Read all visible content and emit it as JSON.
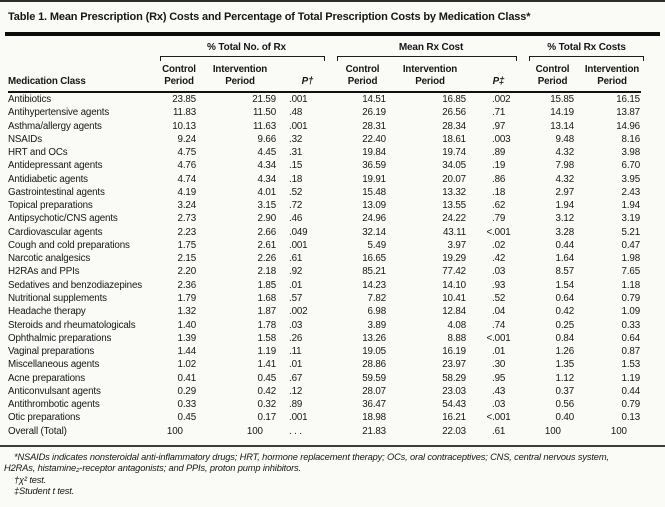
{
  "title": "Table 1. Mean Prescription (Rx) Costs and Percentage of Total Prescription Costs by Medication Class*",
  "table": {
    "row_header": "Medication Class",
    "groups": [
      {
        "label": "% Total No. of Rx",
        "columns": [
          "Control\nPeriod",
          "Intervention\nPeriod",
          "P†"
        ]
      },
      {
        "label": "Mean Rx Cost",
        "columns": [
          "Control\nPeriod",
          "Intervention\nPeriod",
          "P‡"
        ]
      },
      {
        "label": "% Total Rx Costs",
        "columns": [
          "Control\nPeriod",
          "Intervention\nPeriod"
        ]
      }
    ],
    "rows": [
      {
        "label": "Antibiotics",
        "values": [
          "23.85",
          "21.59",
          ".001",
          "14.51",
          "16.85",
          ".002",
          "15.85",
          "16.15"
        ]
      },
      {
        "label": "Antihypertensive agents",
        "values": [
          "11.83",
          "11.50",
          ".48",
          "26.19",
          "26.56",
          ".71",
          "14.19",
          "13.87"
        ]
      },
      {
        "label": "Asthma/allergy agents",
        "values": [
          "10.13",
          "11.63",
          ".001",
          "28.31",
          "28.34",
          ".97",
          "13.14",
          "14.96"
        ]
      },
      {
        "label": "NSAIDs",
        "values": [
          "9.24",
          "9.66",
          ".32",
          "22.40",
          "18.61",
          ".003",
          "9.48",
          "8.16"
        ]
      },
      {
        "label": "HRT and OCs",
        "values": [
          "4.75",
          "4.45",
          ".31",
          "19.84",
          "19.74",
          ".89",
          "4.32",
          "3.98"
        ]
      },
      {
        "label": "Antidepressant agents",
        "values": [
          "4.76",
          "4.34",
          ".15",
          "36.59",
          "34.05",
          ".19",
          "7.98",
          "6.70"
        ]
      },
      {
        "label": "Antidiabetic agents",
        "values": [
          "4.74",
          "4.34",
          ".18",
          "19.91",
          "20.07",
          ".86",
          "4.32",
          "3.95"
        ]
      },
      {
        "label": "Gastrointestinal agents",
        "values": [
          "4.19",
          "4.01",
          ".52",
          "15.48",
          "13.32",
          ".18",
          "2.97",
          "2.43"
        ]
      },
      {
        "label": "Topical preparations",
        "values": [
          "3.24",
          "3.15",
          ".72",
          "13.09",
          "13.55",
          ".62",
          "1.94",
          "1.94"
        ]
      },
      {
        "label": "Antipsychotic/CNS agents",
        "values": [
          "2.73",
          "2.90",
          ".46",
          "24.96",
          "24.22",
          ".79",
          "3.12",
          "3.19"
        ]
      },
      {
        "label": "Cardiovascular agents",
        "values": [
          "2.23",
          "2.66",
          ".049",
          "32.14",
          "43.11",
          "<.001",
          "3.28",
          "5.21"
        ]
      },
      {
        "label": "Cough and cold preparations",
        "values": [
          "1.75",
          "2.61",
          ".001",
          "5.49",
          "3.97",
          ".02",
          "0.44",
          "0.47"
        ]
      },
      {
        "label": "Narcotic analgesics",
        "values": [
          "2.15",
          "2.26",
          ".61",
          "16.65",
          "19.29",
          ".42",
          "1.64",
          "1.98"
        ]
      },
      {
        "label": "H2RAs and PPIs",
        "values": [
          "2.20",
          "2.18",
          ".92",
          "85.21",
          "77.42",
          ".03",
          "8.57",
          "7.65"
        ]
      },
      {
        "label": "Sedatives and benzodiazepines",
        "values": [
          "2.36",
          "1.85",
          ".01",
          "14.23",
          "14.10",
          ".93",
          "1.54",
          "1.18"
        ]
      },
      {
        "label": "Nutritional supplements",
        "values": [
          "1.79",
          "1.68",
          ".57",
          "7.82",
          "10.41",
          ".52",
          "0.64",
          "0.79"
        ]
      },
      {
        "label": "Headache therapy",
        "values": [
          "1.32",
          "1.87",
          ".002",
          "6.98",
          "12.84",
          ".04",
          "0.42",
          "1.09"
        ]
      },
      {
        "label": "Steroids and rheumatologicals",
        "values": [
          "1.40",
          "1.78",
          ".03",
          "3.89",
          "4.08",
          ".74",
          "0.25",
          "0.33"
        ]
      },
      {
        "label": "Ophthalmic preparations",
        "values": [
          "1.39",
          "1.58",
          ".26",
          "13.26",
          "8.88",
          "<.001",
          "0.84",
          "0.64"
        ]
      },
      {
        "label": "Vaginal preparations",
        "values": [
          "1.44",
          "1.19",
          ".11",
          "19.05",
          "16.19",
          ".01",
          "1.26",
          "0.87"
        ]
      },
      {
        "label": "Miscellaneous agents",
        "values": [
          "1.02",
          "1.41",
          ".01",
          "28.86",
          "23.97",
          ".30",
          "1.35",
          "1.53"
        ]
      },
      {
        "label": "Acne preparations",
        "values": [
          "0.41",
          "0.45",
          ".67",
          "59.59",
          "58.29",
          ".95",
          "1.12",
          "1.19"
        ]
      },
      {
        "label": "Anticonvulsant agents",
        "values": [
          "0.29",
          "0.42",
          ".12",
          "28.07",
          "23.03",
          ".43",
          "0.37",
          "0.44"
        ]
      },
      {
        "label": "Antithrombotic agents",
        "values": [
          "0.33",
          "0.32",
          ".89",
          "36.47",
          "54.43",
          ".03",
          "0.56",
          "0.79"
        ]
      },
      {
        "label": "Otic preparations",
        "values": [
          "0.45",
          "0.17",
          ".001",
          "18.98",
          "16.21",
          "<.001",
          "0.40",
          "0.13"
        ]
      },
      {
        "label": "Overall (Total)",
        "values": [
          "100",
          "100",
          ". . .",
          "21.83",
          "22.03",
          ".61",
          "100",
          "100"
        ]
      }
    ]
  },
  "footnotes": [
    "*NSAIDs indicates nonsteroidal anti-inflammatory drugs; HRT, hormone replacement therapy; OCs, oral contraceptives; CNS, central nervous system,\nH2RAs, histamine₂-receptor antagonists; and PPIs, proton pump inhibitors.",
    "†χ² test.",
    "‡Student t test."
  ]
}
